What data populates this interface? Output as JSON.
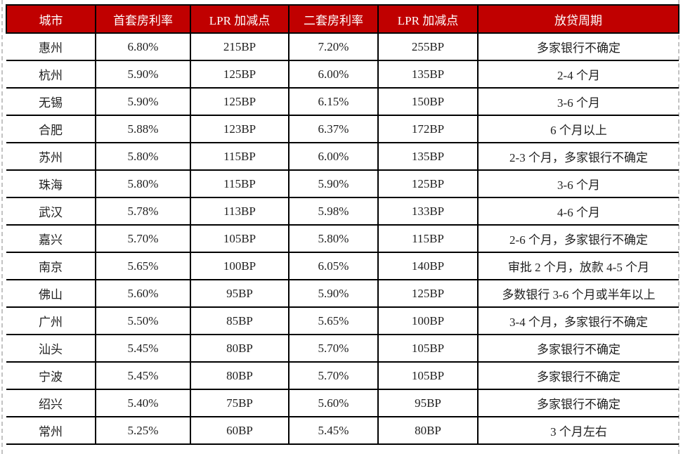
{
  "colors": {
    "header_bg": "#C00000",
    "header_text": "#FFFFFF",
    "body_text": "#1F1F1F",
    "grid_line": "#000000",
    "dashed_guide": "#C3C3C3"
  },
  "table": {
    "columns": [
      "城市",
      "首套房利率",
      "LPR 加减点",
      "二套房利率",
      "LPR 加减点",
      "放贷周期"
    ],
    "rows": [
      [
        "惠州",
        "6.80%",
        "215BP",
        "7.20%",
        "255BP",
        "多家银行不确定"
      ],
      [
        "杭州",
        "5.90%",
        "125BP",
        "6.00%",
        "135BP",
        "2-4 个月"
      ],
      [
        "无锡",
        "5.90%",
        "125BP",
        "6.15%",
        "150BP",
        "3-6 个月"
      ],
      [
        "合肥",
        "5.88%",
        "123BP",
        "6.37%",
        "172BP",
        "6 个月以上"
      ],
      [
        "苏州",
        "5.80%",
        "115BP",
        "6.00%",
        "135BP",
        "2-3 个月，多家银行不确定"
      ],
      [
        "珠海",
        "5.80%",
        "115BP",
        "5.90%",
        "125BP",
        "3-6 个月"
      ],
      [
        "武汉",
        "5.78%",
        "113BP",
        "5.98%",
        "133BP",
        "4-6 个月"
      ],
      [
        "嘉兴",
        "5.70%",
        "105BP",
        "5.80%",
        "115BP",
        "2-6 个月，多家银行不确定"
      ],
      [
        "南京",
        "5.65%",
        "100BP",
        "6.05%",
        "140BP",
        "审批 2 个月，放款 4-5 个月"
      ],
      [
        "佛山",
        "5.60%",
        "95BP",
        "5.90%",
        "125BP",
        "多数银行 3-6 个月或半年以上"
      ],
      [
        "广州",
        "5.50%",
        "85BP",
        "5.65%",
        "100BP",
        "3-4 个月，多家银行不确定"
      ],
      [
        "汕头",
        "5.45%",
        "80BP",
        "5.70%",
        "105BP",
        "多家银行不确定"
      ],
      [
        "宁波",
        "5.45%",
        "80BP",
        "5.70%",
        "105BP",
        "多家银行不确定"
      ],
      [
        "绍兴",
        "5.40%",
        "75BP",
        "5.60%",
        "95BP",
        "多家银行不确定"
      ],
      [
        "常州",
        "5.25%",
        "60BP",
        "5.45%",
        "80BP",
        "3 个月左右"
      ]
    ]
  }
}
